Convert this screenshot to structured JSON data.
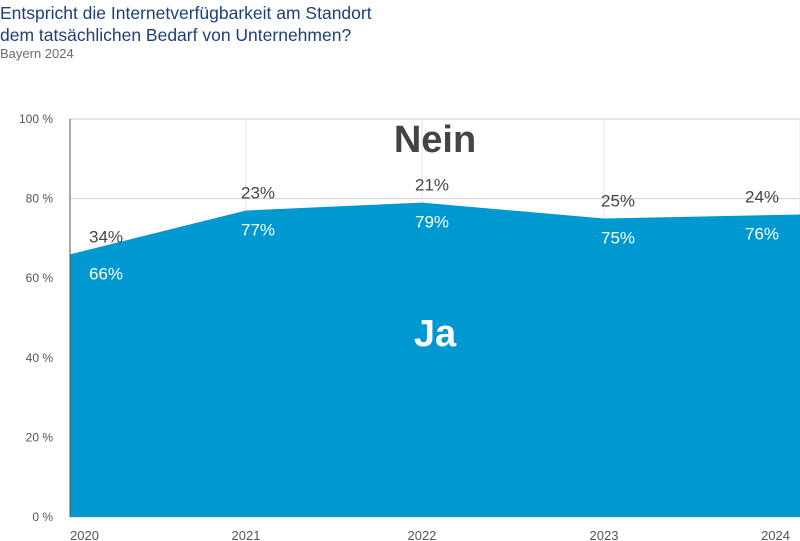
{
  "title": {
    "line1": "Entspricht die Internetverfügbarkeit am Standort",
    "line2": "dem tatsächlichen Bedarf von Unternehmen?"
  },
  "subtitle": "Bayern 2024",
  "colors": {
    "ja": "#0098d0",
    "nein": "#ffffff",
    "title": "#1d3f7a",
    "grid": "#d0d0d0",
    "axis_text": "#555555",
    "label_dark": "#444444",
    "label_light": "#ffffff"
  },
  "chart_data": {
    "type": "area",
    "title": "Entspricht die Internetverfügbarkeit am Standort dem tatsächlichen Bedarf von Unternehmen?",
    "subtitle": "Bayern 2024",
    "x": [
      "2020",
      "2021",
      "2022",
      "2023",
      "2024"
    ],
    "series": [
      {
        "name": "Ja",
        "values": [
          66,
          77,
          79,
          75,
          76
        ],
        "labels": [
          "66%",
          "77%",
          "79%",
          "75%",
          "76%"
        ]
      },
      {
        "name": "Nein",
        "values": [
          34,
          23,
          21,
          25,
          24
        ],
        "labels": [
          "34%",
          "23%",
          "21%",
          "25%",
          "24%"
        ]
      }
    ],
    "stacked": true,
    "ylim": [
      0,
      100
    ],
    "yticks": [
      0,
      20,
      40,
      60,
      80,
      100
    ],
    "ytick_labels": [
      "0 %",
      "20 %",
      "40 %",
      "60 %",
      "80 %",
      "100 %"
    ],
    "area_labels": {
      "ja": "Ja",
      "nein": "Nein"
    },
    "grid": true,
    "xlabel": "",
    "ylabel": ""
  }
}
